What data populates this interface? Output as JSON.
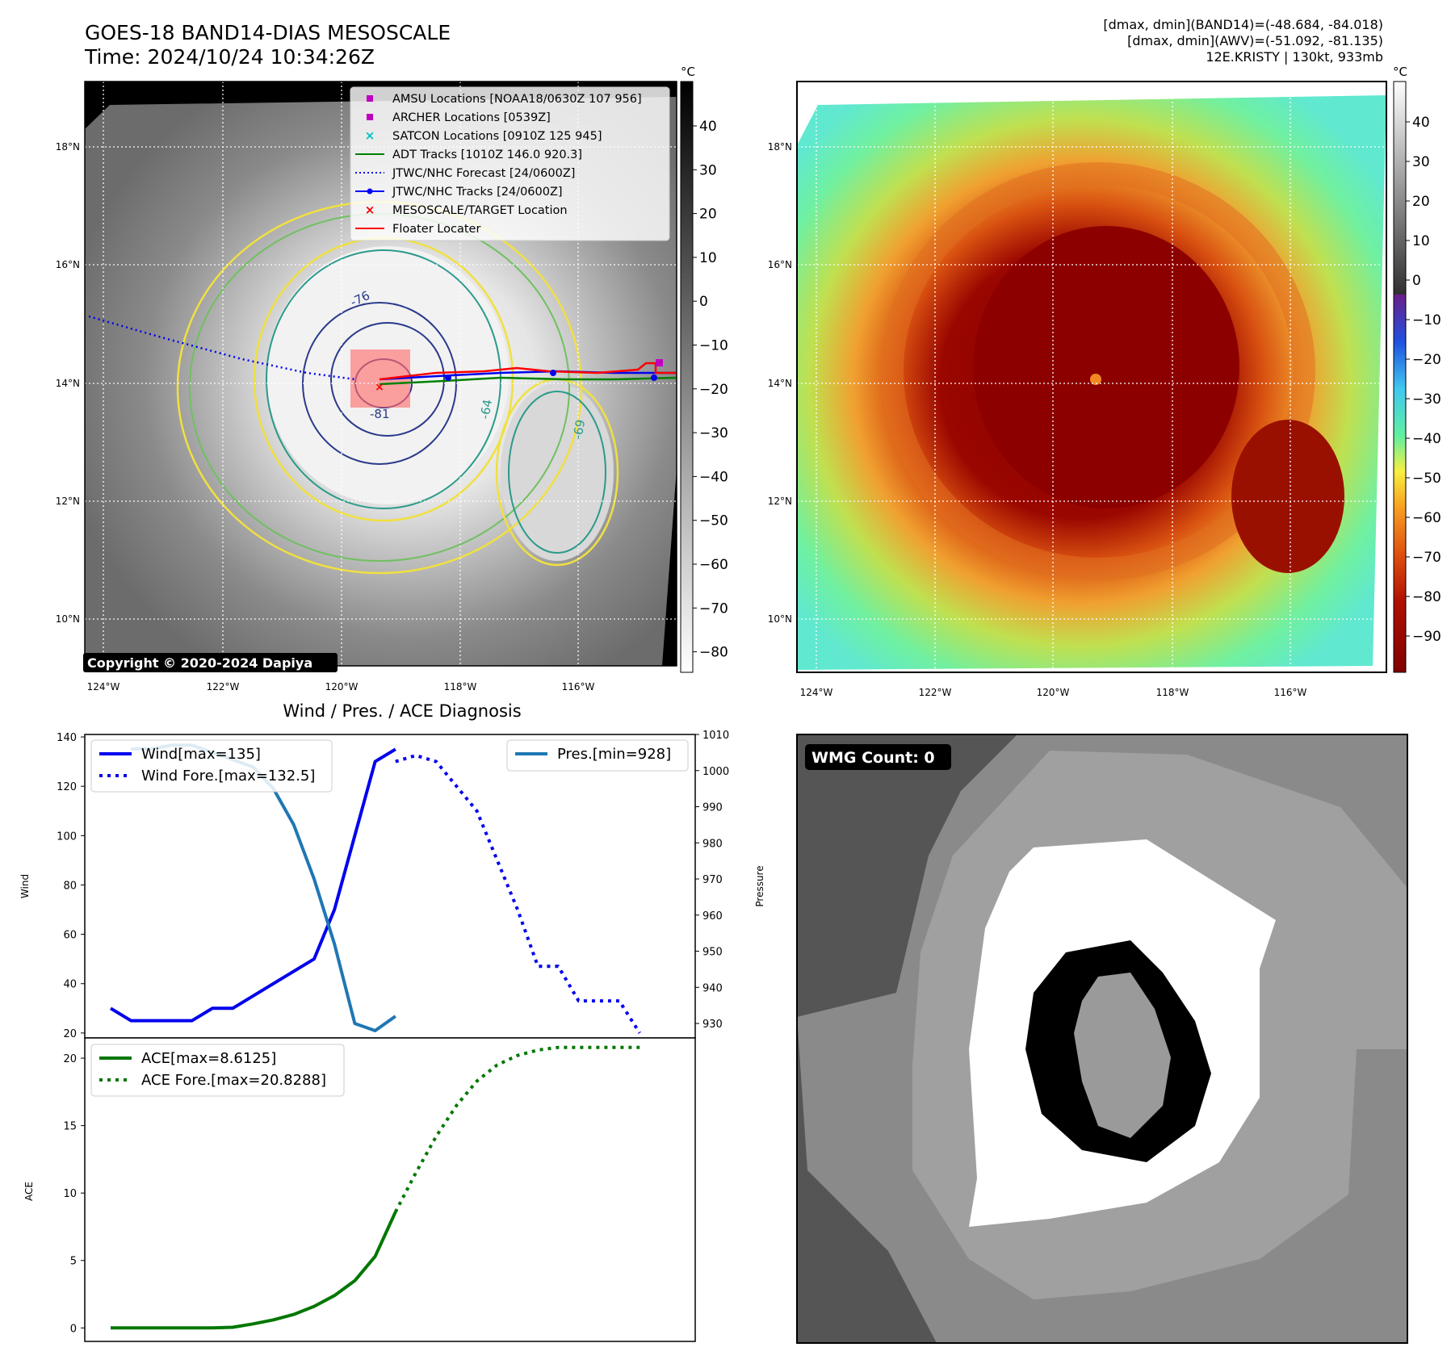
{
  "header": {
    "title_line1": "GOES-18 BAND14-DIAS MESOSCALE",
    "title_line2": "Time: 2024/10/24 10:34:26Z",
    "stats_line1": "[dmax, dmin](BAND14)=(-48.684, -84.018)",
    "stats_line2": "[dmax, dmin](AWV)=(-51.092, -81.135)",
    "stats_line3": "12E.KRISTY | 130kt, 933mb"
  },
  "map": {
    "lon_labels": [
      "124°W",
      "122°W",
      "120°W",
      "118°W",
      "116°W"
    ],
    "lat_labels": [
      "18°N",
      "16°N",
      "14°N",
      "12°N",
      "10°N"
    ],
    "copyright": "Copyright © 2020-2024 Dapiya",
    "contour_labels": [
      "-76",
      "-81",
      "-64",
      "-69"
    ],
    "legend": [
      {
        "label": "AMSU Locations [NOAA18/0630Z 107 956]",
        "color": "#c000c0",
        "kind": "square"
      },
      {
        "label": "ARCHER Locations [0539Z]",
        "color": "#c000c0",
        "kind": "square"
      },
      {
        "label": "SATCON Locations [0910Z 125 945]",
        "color": "#00c0c0",
        "kind": "x"
      },
      {
        "label": "ADT Tracks [1010Z 146.0 920.3]",
        "color": "#008000",
        "kind": "line"
      },
      {
        "label": "JTWC/NHC Forecast [24/0600Z]",
        "color": "#0000ff",
        "kind": "dotted"
      },
      {
        "label": "JTWC/NHC Tracks [24/0600Z]",
        "color": "#0000ff",
        "kind": "line-dot"
      },
      {
        "label": "MESOSCALE/TARGET Location",
        "color": "#ff0000",
        "kind": "x"
      },
      {
        "label": "Floater Locater",
        "color": "#ff0000",
        "kind": "line"
      }
    ]
  },
  "colorbar_gray": {
    "unit": "°C",
    "ticks": [
      "40",
      "30",
      "20",
      "10",
      "0",
      "−10",
      "−20",
      "−30",
      "−40",
      "−50",
      "−60",
      "−70",
      "−80"
    ]
  },
  "colorbar_color": {
    "unit": "°C",
    "ticks": [
      "40",
      "30",
      "20",
      "10",
      "0",
      "−10",
      "−20",
      "−30",
      "−40",
      "−50",
      "−60",
      "−70",
      "−80",
      "−90"
    ]
  },
  "wmg": {
    "label": "WMG Count: 0"
  },
  "colors": {
    "wind": "#0000ee",
    "pressure": "#1f77b4",
    "ace": "#007700"
  },
  "chart_data": [
    {
      "type": "line",
      "title": "Wind / Pres. / ACE Diagnosis",
      "ylabel": "Wind",
      "y2label": "Pressure",
      "ylim": [
        18,
        141
      ],
      "y2lim": [
        926,
        1010
      ],
      "yticks": [
        20,
        40,
        60,
        80,
        100,
        120,
        140
      ],
      "y2ticks": [
        930,
        940,
        950,
        960,
        970,
        980,
        990,
        1000,
        1010
      ],
      "series": [
        {
          "name": "Wind[max=135]",
          "axis": "left",
          "style": "solid",
          "x": [
            0,
            1,
            2,
            3,
            4,
            5,
            6,
            8,
            10,
            11,
            12,
            13,
            14
          ],
          "values": [
            30,
            25,
            25,
            25,
            25,
            30,
            30,
            40,
            50,
            70,
            100,
            130,
            135
          ]
        },
        {
          "name": "Wind Fore.[max=132.5]",
          "axis": "left",
          "style": "dotted",
          "x": [
            14,
            15,
            16,
            17,
            18,
            19,
            20,
            21,
            22,
            23,
            24,
            25,
            26
          ],
          "values": [
            130,
            132.5,
            130,
            120,
            110,
            90,
            70,
            47,
            47,
            33,
            33,
            33,
            20
          ]
        },
        {
          "name": "Pres.[min=928]",
          "axis": "right",
          "style": "solid",
          "x": [
            1,
            2,
            3,
            4,
            5,
            6,
            7,
            8,
            9,
            10,
            11,
            12,
            13,
            14
          ],
          "values": [
            1006,
            1006,
            1007,
            1007,
            1005,
            1003,
            1001,
            995,
            985,
            970,
            952,
            930,
            928,
            932
          ]
        }
      ]
    },
    {
      "type": "line",
      "ylabel": "ACE",
      "ylim": [
        -1,
        21.5
      ],
      "yticks": [
        0,
        5,
        10,
        15,
        20
      ],
      "series": [
        {
          "name": "ACE[max=8.6125]",
          "style": "solid",
          "x": [
            0,
            1,
            2,
            3,
            4,
            5,
            6,
            7,
            8,
            9,
            10,
            11,
            12,
            13,
            14
          ],
          "values": [
            0,
            0,
            0,
            0,
            0,
            0,
            0.05,
            0.3,
            0.6,
            1.0,
            1.6,
            2.4,
            3.5,
            5.3,
            8.6
          ]
        },
        {
          "name": "ACE Fore.[max=20.8288]",
          "style": "dotted",
          "x": [
            14,
            15,
            16,
            17,
            18,
            19,
            20,
            21,
            22,
            23,
            24,
            25,
            26
          ],
          "values": [
            8.6,
            11.5,
            14.2,
            16.5,
            18.3,
            19.5,
            20.2,
            20.6,
            20.8,
            20.8,
            20.8,
            20.8,
            20.8
          ]
        }
      ]
    }
  ]
}
